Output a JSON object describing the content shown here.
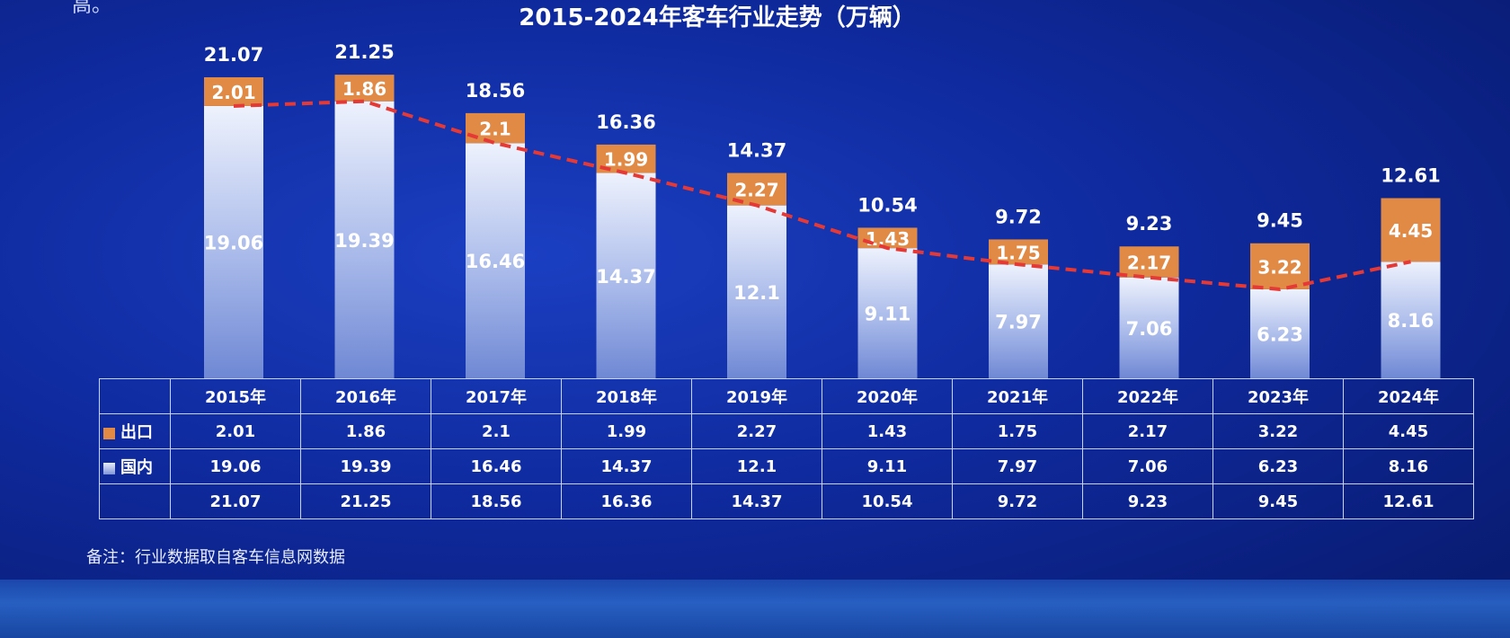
{
  "corner_text": "高。",
  "chart_data": {
    "type": "bar",
    "stacked": true,
    "title": "2015-2024年客车行业走势（万辆）",
    "categories": [
      "2015年",
      "2016年",
      "2017年",
      "2018年",
      "2019年",
      "2020年",
      "2021年",
      "2022年",
      "2023年",
      "2024年"
    ],
    "series": [
      {
        "name": "国内",
        "values": [
          19.06,
          19.39,
          16.46,
          14.37,
          12.1,
          9.11,
          7.97,
          7.06,
          6.23,
          8.16
        ],
        "color": "#b9c7f0"
      },
      {
        "name": "出口",
        "values": [
          2.01,
          1.86,
          2.1,
          1.99,
          2.27,
          1.43,
          1.75,
          2.17,
          3.22,
          4.45
        ],
        "color": "#e08a45"
      }
    ],
    "totals": [
      21.07,
      21.25,
      18.56,
      16.36,
      14.37,
      10.54,
      9.72,
      9.23,
      9.45,
      12.61
    ],
    "total_labels": [
      "21.07",
      "21.25",
      "18.56",
      "16.36",
      "14.37",
      "10.54",
      "9.72",
      "9.23",
      "9.45",
      "12.61"
    ],
    "domestic_labels": [
      "19.06",
      "19.39",
      "16.46",
      "14.37",
      "12.1",
      "9.11",
      "7.97",
      "7.06",
      "6.23",
      "8.16"
    ],
    "export_labels": [
      "2.01",
      "1.86",
      "2.1",
      "1.99",
      "2.27",
      "1.43",
      "1.75",
      "2.17",
      "3.22",
      "4.45"
    ],
    "trend_line": {
      "style": "dashed",
      "color": "#e53935"
    },
    "ylim": [
      0,
      23
    ],
    "grid": false,
    "legend_position": "table-left"
  },
  "table": {
    "rows": [
      {
        "label": "出口",
        "swatch": "export",
        "values": [
          "2.01",
          "1.86",
          "2.1",
          "1.99",
          "2.27",
          "1.43",
          "1.75",
          "2.17",
          "3.22",
          "4.45"
        ]
      },
      {
        "label": "国内",
        "swatch": "domestic",
        "values": [
          "19.06",
          "19.39",
          "16.46",
          "14.37",
          "12.1",
          "9.11",
          "7.97",
          "7.06",
          "6.23",
          "8.16"
        ]
      },
      {
        "label": "",
        "swatch": "",
        "values": [
          "21.07",
          "21.25",
          "18.56",
          "16.36",
          "14.37",
          "10.54",
          "9.72",
          "9.23",
          "9.45",
          "12.61"
        ]
      }
    ]
  },
  "note": "备注：行业数据取自客车信息网数据",
  "colors": {
    "background": "#0f2a9e",
    "export": "#e08a45",
    "domestic_top": "#e9eefc",
    "domestic_bottom": "#7e95d9",
    "trend": "#e53935",
    "table_border": "#c7d3ff"
  }
}
